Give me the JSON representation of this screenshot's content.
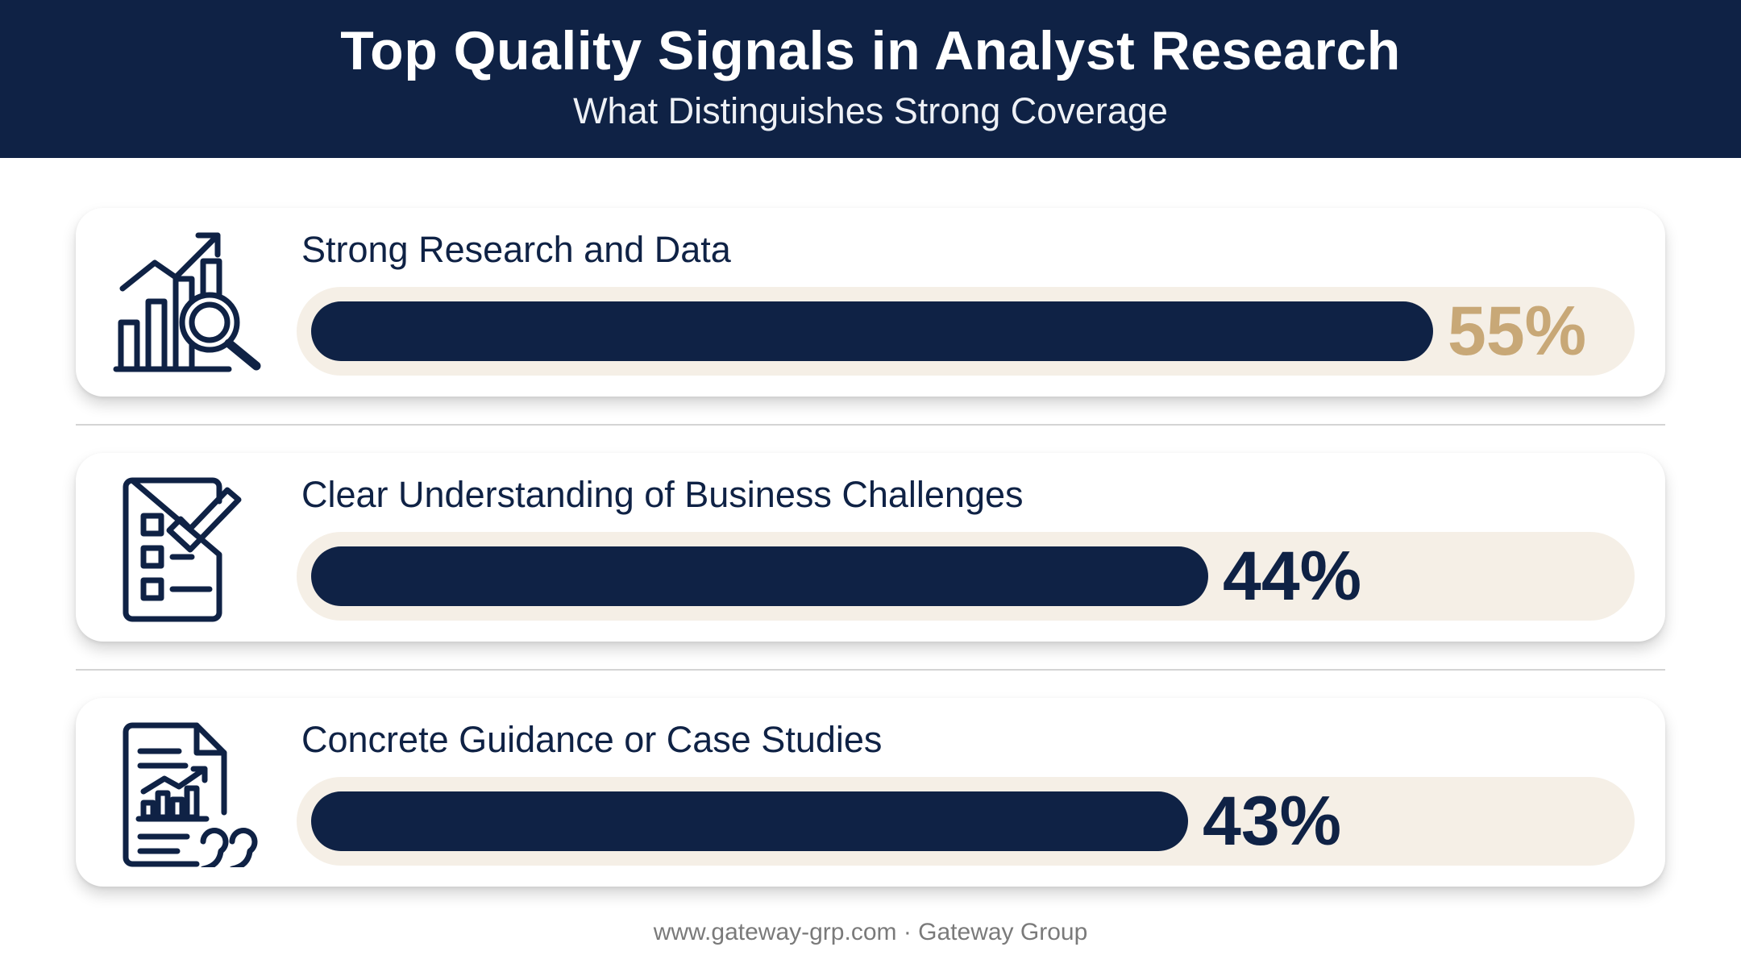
{
  "header": {
    "title": "Top Quality Signals in Analyst Research",
    "subtitle": "What Distinguishes Strong Coverage"
  },
  "chart_data": {
    "type": "bar",
    "orientation": "horizontal",
    "title": "Top Quality Signals in Analyst Research",
    "subtitle": "What Distinguishes Strong Coverage",
    "categories": [
      "Strong Research and Data",
      "Clear Understanding of Business Challenges",
      "Concrete Guidance or Case Studies"
    ],
    "values": [
      55,
      44,
      43
    ],
    "value_labels": [
      "55%",
      "44%",
      "43%"
    ],
    "unit": "%",
    "xlim": [
      0,
      100
    ],
    "grid": false,
    "legend": "none",
    "icons": [
      "bar-chart-magnifier-icon",
      "checklist-icon",
      "report-quote-icon"
    ],
    "colors": {
      "bar": "#0f2245",
      "track": "#f5efe6",
      "highlight_value": "#c8a877",
      "value": "#0f2245",
      "header_bg": "#0f2245"
    }
  },
  "footer": {
    "text": "www.gateway-grp.com · Gateway Group"
  }
}
